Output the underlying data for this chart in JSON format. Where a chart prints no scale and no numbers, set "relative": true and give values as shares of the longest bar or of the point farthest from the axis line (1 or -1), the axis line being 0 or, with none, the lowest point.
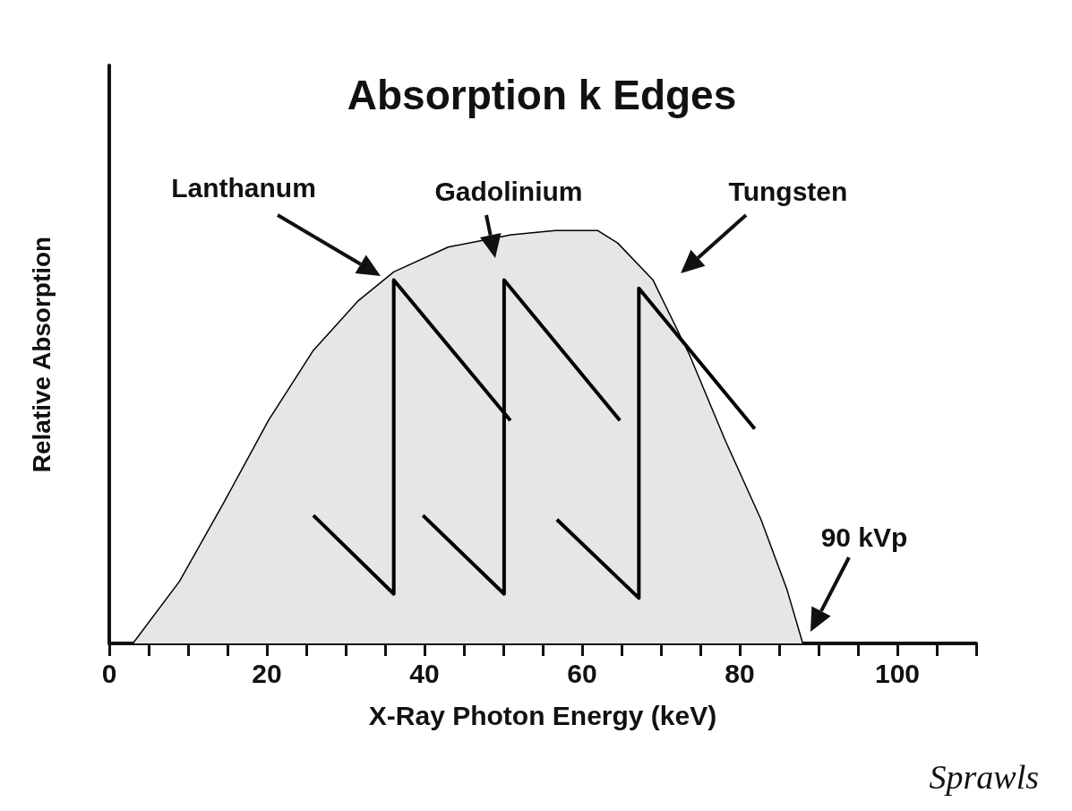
{
  "chart_data": {
    "type": "area",
    "title": "Absorption k Edges",
    "xlabel": "X-Ray Photon Energy (keV)",
    "ylabel": "Relative Absorption",
    "relative": true,
    "xlim": [
      0,
      110
    ],
    "xticks": [
      0,
      {
        "value": 5,
        "label": null
      },
      {
        "value": 10,
        "label": null
      },
      {
        "value": 15,
        "label": null
      },
      20,
      {
        "value": 25,
        "label": null
      },
      {
        "value": 30,
        "label": null
      },
      {
        "value": 35,
        "label": null
      },
      40,
      {
        "value": 45,
        "label": null
      },
      {
        "value": 50,
        "label": null
      },
      {
        "value": 55,
        "label": null
      },
      60,
      {
        "value": 65,
        "label": null
      },
      {
        "value": 70,
        "label": null
      },
      {
        "value": 75,
        "label": null
      },
      80,
      {
        "value": 85,
        "label": null
      },
      {
        "value": 90,
        "label": null
      },
      {
        "value": 95,
        "label": null
      },
      100,
      {
        "value": 105,
        "label": null
      },
      {
        "value": 110,
        "label": null
      }
    ],
    "series": [
      {
        "color": "#e6e6e7",
        "x": [
          3,
          8.9,
          14.5,
          20.2,
          25.9,
          31.6,
          36.1,
          43,
          51,
          56.6,
          62,
          64.5,
          69,
          73.6,
          78.2,
          82.7,
          86,
          88
        ],
        "values": [
          0,
          0.15,
          0.34,
          0.54,
          0.71,
          0.83,
          0.9,
          0.96,
          0.99,
          1,
          1,
          0.97,
          0.88,
          0.7,
          0.49,
          0.3,
          0.13,
          0
        ]
      },
      {
        "type": "line",
        "color": "#000000",
        "x": [
          25.9,
          36.1,
          36.1,
          50.9
        ],
        "values": [
          0.31,
          0.12,
          0.88,
          0.54
        ]
      },
      {
        "type": "line",
        "color": "#000000",
        "x": [
          39.8,
          50.1,
          50.1,
          64.8
        ],
        "values": [
          0.31,
          0.12,
          0.88,
          0.54
        ]
      },
      {
        "type": "line",
        "color": "#000000",
        "x": [
          56.8,
          67.2,
          67.2,
          81.9
        ],
        "values": [
          0.3,
          0.11,
          0.86,
          0.52
        ]
      }
    ],
    "annotations": [
      "Lanthanum",
      "Gadolinium",
      "Tungsten",
      "90 kVp",
      "Sprawls"
    ],
    "grid": false,
    "marker": "none"
  }
}
